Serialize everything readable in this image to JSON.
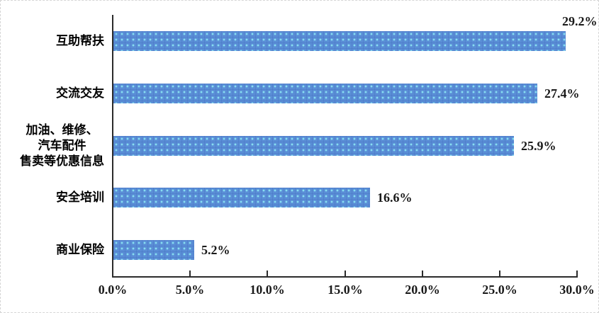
{
  "chart_data": {
    "type": "bar",
    "orientation": "horizontal",
    "title": "",
    "xlabel": "",
    "ylabel": "",
    "categories": [
      [
        "互助帮扶"
      ],
      [
        "交流交友"
      ],
      [
        "加油、维修、",
        "汽车配件",
        "售卖等优惠信息"
      ],
      [
        "安全培训"
      ],
      [
        "商业保险"
      ]
    ],
    "values": [
      29.2,
      27.4,
      25.9,
      16.6,
      5.2
    ],
    "value_labels": [
      "29.2%",
      "27.4%",
      "25.9%",
      "16.6%",
      "5.2%"
    ],
    "x_tick_values": [
      0,
      5,
      10,
      15,
      20,
      25,
      30
    ],
    "x_tick_labels": [
      "0.0%",
      "5.0%",
      "10.0%",
      "15.0%",
      "20.0%",
      "25.0%",
      "30.0%"
    ],
    "xlim": [
      0,
      30
    ],
    "grid": false,
    "legend": false,
    "colors": {
      "bar_fill": "#5a8ed6",
      "bar_dot": "#89e2f2",
      "axis": "#2b2b2b",
      "text": "#000000",
      "border_dash": "#d5d5d5"
    }
  }
}
